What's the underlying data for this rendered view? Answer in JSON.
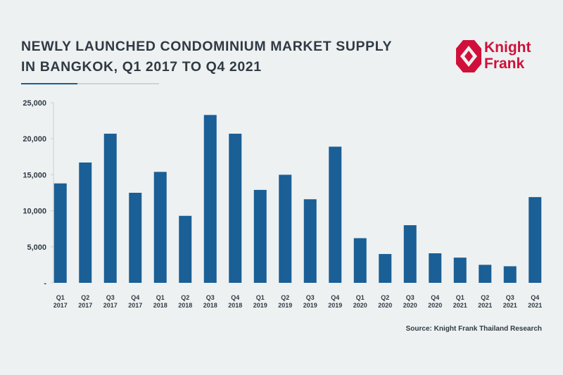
{
  "header": {
    "title_line1": "NEWLY LAUNCHED CONDOMINIUM MARKET SUPPLY",
    "title_line2": "IN BANGKOK, Q1 2017 TO Q4 2021"
  },
  "logo": {
    "line1": "Knight",
    "line2": "Frank",
    "color": "#d0103a",
    "icon": "knight-frank-logo-mark"
  },
  "source": "Source: Knight Frank Thailand Research",
  "colors": {
    "bar": "#1a5f96",
    "text": "#2f3a45",
    "background": "#eef1f1"
  },
  "chart_data": {
    "type": "bar",
    "title": "NEWLY LAUNCHED CONDOMINIUM MARKET SUPPLY IN BANGKOK, Q1 2017 TO Q4 2021",
    "xlabel": "",
    "ylabel": "",
    "ylim": [
      0,
      25000
    ],
    "yticks": [
      0,
      5000,
      10000,
      15000,
      20000,
      25000
    ],
    "ytick_labels": [
      "-",
      "5,000",
      "10,000",
      "15,000",
      "20,000",
      "25,000"
    ],
    "grid": false,
    "categories": [
      [
        "Q1",
        "2017"
      ],
      [
        "Q2",
        "2017"
      ],
      [
        "Q3",
        "2017"
      ],
      [
        "Q4",
        "2017"
      ],
      [
        "Q1",
        "2018"
      ],
      [
        "Q2",
        "2018"
      ],
      [
        "Q3",
        "2018"
      ],
      [
        "Q4",
        "2018"
      ],
      [
        "Q1",
        "2019"
      ],
      [
        "Q2",
        "2019"
      ],
      [
        "Q3",
        "2019"
      ],
      [
        "Q4",
        "2019"
      ],
      [
        "Q1",
        "2020"
      ],
      [
        "Q2",
        "2020"
      ],
      [
        "Q3",
        "2020"
      ],
      [
        "Q4",
        "2020"
      ],
      [
        "Q1",
        "2021"
      ],
      [
        "Q2",
        "2021"
      ],
      [
        "Q3",
        "2021"
      ],
      [
        "Q4",
        "2021"
      ]
    ],
    "values": [
      13800,
      16700,
      20700,
      12500,
      15400,
      9300,
      23300,
      20700,
      12900,
      15000,
      11600,
      18900,
      6200,
      4000,
      8000,
      4100,
      3500,
      2500,
      2300,
      11900
    ]
  }
}
